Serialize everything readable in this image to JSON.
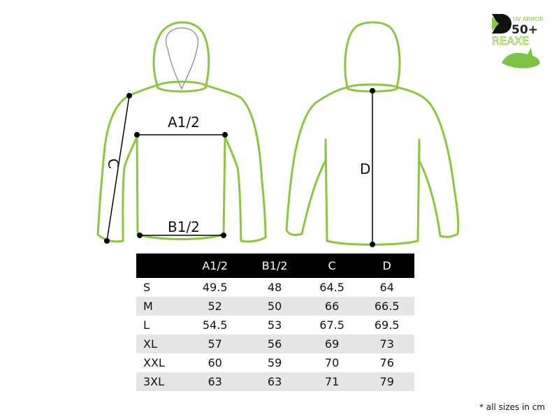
{
  "colors": {
    "garment_outline": "#8cc63f",
    "header_bg": "#000000",
    "alt_row": "#e6e6e6"
  },
  "logo": {
    "text_top": "UV ARMOR",
    "text_number": "50+",
    "brand": "REAXE",
    "icon": "fish-logo-icon"
  },
  "diagram": {
    "labels": {
      "a": "A1/2",
      "b": "B1/2",
      "c": "C",
      "d": "D"
    }
  },
  "table": {
    "headers": [
      "",
      "A1/2",
      "B1/2",
      "C",
      "D"
    ],
    "rows": [
      {
        "size": "S",
        "values": [
          "49.5",
          "48",
          "64.5",
          "64"
        ]
      },
      {
        "size": "M",
        "values": [
          "52",
          "50",
          "66",
          "66.5"
        ]
      },
      {
        "size": "L",
        "values": [
          "54.5",
          "53",
          "67.5",
          "69.5"
        ]
      },
      {
        "size": "XL",
        "values": [
          "57",
          "56",
          "69",
          "73"
        ]
      },
      {
        "size": "XXL",
        "values": [
          "60",
          "59",
          "70",
          "76"
        ]
      },
      {
        "size": "3XL",
        "values": [
          "63",
          "63",
          "71",
          "79"
        ]
      }
    ]
  },
  "footnote": "* all sizes in cm"
}
